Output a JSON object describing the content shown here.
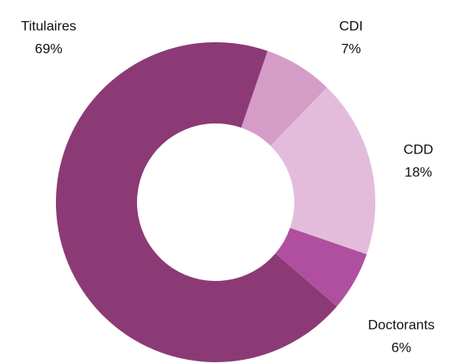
{
  "chart_data": {
    "type": "donut",
    "categories": [
      "Titulaires",
      "CDI",
      "CDD",
      "Doctorants"
    ],
    "values": [
      69,
      7,
      18,
      6
    ],
    "value_labels": [
      "69%",
      "7%",
      "18%",
      "6%"
    ],
    "colors": [
      "#8b3a76",
      "#d59cc8",
      "#e3bcdb",
      "#b04f9f"
    ]
  }
}
